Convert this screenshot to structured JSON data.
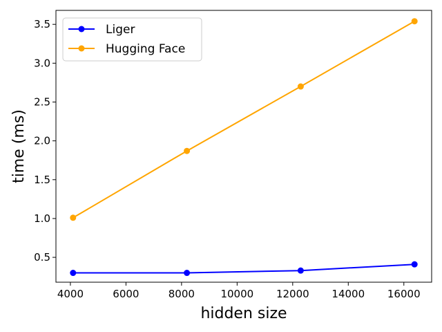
{
  "chart_data": {
    "type": "line",
    "title": "",
    "xlabel": "hidden size",
    "ylabel": "time (ms)",
    "x": [
      4096,
      8192,
      12288,
      16384
    ],
    "xlim": [
      3480,
      17000
    ],
    "ylim": [
      0.18,
      3.68
    ],
    "xticks": [
      4000,
      6000,
      8000,
      10000,
      12000,
      14000,
      16000
    ],
    "yticks": [
      0.5,
      1.0,
      1.5,
      2.0,
      2.5,
      3.0,
      3.5
    ],
    "xtick_labels": [
      "4000",
      "6000",
      "8000",
      "10000",
      "12000",
      "14000",
      "16000"
    ],
    "ytick_labels": [
      "0.5",
      "1.0",
      "1.5",
      "2.0",
      "2.5",
      "3.0",
      "3.5"
    ],
    "grid": false,
    "legend_position": "top-left",
    "series": [
      {
        "name": "Liger",
        "color": "#0000ff",
        "values": [
          0.3,
          0.3,
          0.33,
          0.41
        ]
      },
      {
        "name": "Hugging Face",
        "color": "#ffa500",
        "values": [
          1.01,
          1.87,
          2.7,
          3.54
        ]
      }
    ]
  }
}
